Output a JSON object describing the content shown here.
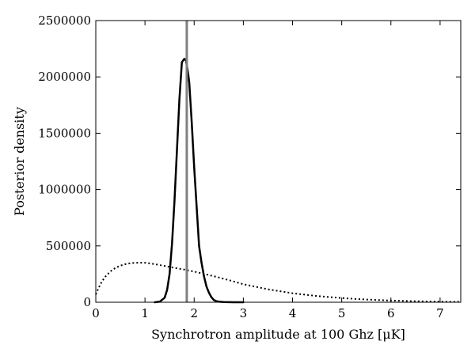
{
  "chart_data": {
    "type": "line",
    "title": "",
    "xlabel": "Synchrotron amplitude at 100 Ghz [μK]",
    "ylabel": "Posterior density",
    "xlim": [
      0,
      7.42
    ],
    "ylim": [
      0,
      2500000
    ],
    "x_ticks": [
      0,
      1,
      2,
      3,
      4,
      5,
      6,
      7
    ],
    "y_ticks": [
      0,
      500000,
      1000000,
      1500000,
      2000000,
      2500000
    ],
    "x_tick_labels": [
      "0",
      "1",
      "2",
      "3",
      "4",
      "5",
      "6",
      "7"
    ],
    "y_tick_labels": [
      "0",
      "500000",
      "1000000",
      "1500000",
      "2000000",
      "2500000"
    ],
    "grid": false,
    "series": [
      {
        "style": "solid",
        "color": "#000000",
        "x": [
          1.2,
          1.3,
          1.4,
          1.45,
          1.5,
          1.55,
          1.6,
          1.65,
          1.7,
          1.75,
          1.8,
          1.83,
          1.86,
          1.88,
          1.9,
          1.95,
          2.0,
          2.05,
          2.1,
          2.15,
          2.2,
          2.25,
          2.3,
          2.35,
          2.4,
          2.45,
          2.5,
          2.6,
          2.7,
          2.8,
          3.0
        ],
        "y": [
          0,
          5000,
          40000,
          110000,
          250000,
          520000,
          900000,
          1350000,
          1800000,
          2130000,
          2160000,
          2150000,
          2080000,
          2020000,
          1950000,
          1600000,
          1200000,
          850000,
          500000,
          350000,
          230000,
          140000,
          85000,
          45000,
          20000,
          10000,
          5000,
          2000,
          1000,
          0,
          0
        ]
      },
      {
        "style": "dotted",
        "color": "#000000",
        "x": [
          0,
          0.05,
          0.1,
          0.15,
          0.2,
          0.3,
          0.4,
          0.5,
          0.6,
          0.7,
          0.8,
          0.9,
          1.0,
          1.1,
          1.2,
          1.4,
          1.6,
          1.8,
          2.0,
          2.2,
          2.5,
          2.8,
          3.0,
          3.5,
          4.0,
          4.5,
          5.0,
          5.5,
          6.0,
          6.5,
          7.0,
          7.42
        ],
        "y": [
          70000,
          120000,
          165000,
          200000,
          230000,
          275000,
          305000,
          325000,
          338000,
          346000,
          350000,
          351000,
          350000,
          345000,
          338000,
          322000,
          305000,
          290000,
          272000,
          252000,
          220000,
          185000,
          160000,
          115000,
          80000,
          55000,
          37000,
          24000,
          15000,
          9000,
          5000,
          3000
        ]
      }
    ],
    "vlines": [
      {
        "x": 1.85,
        "color": "#808080"
      }
    ]
  }
}
